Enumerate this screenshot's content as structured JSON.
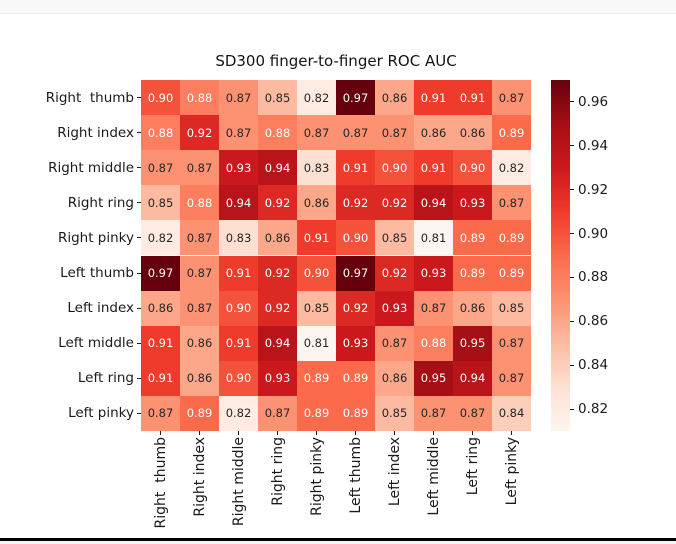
{
  "chart_data": {
    "type": "heatmap",
    "title": "SD300 finger-to-finger ROC AUC",
    "xlabel": "",
    "ylabel": "",
    "row_labels": [
      "Right  thumb",
      "Right index",
      "Right middle",
      "Right ring",
      "Right pinky",
      "Left thumb",
      "Left index",
      "Left middle",
      "Left ring",
      "Left pinky"
    ],
    "col_labels": [
      "Right  thumb",
      "Right index",
      "Right middle",
      "Right ring",
      "Right pinky",
      "Left thumb",
      "Left index",
      "Left middle",
      "Left ring",
      "Left pinky"
    ],
    "values": [
      [
        0.9,
        0.88,
        0.87,
        0.85,
        0.82,
        0.97,
        0.86,
        0.91,
        0.91,
        0.87
      ],
      [
        0.88,
        0.92,
        0.87,
        0.88,
        0.87,
        0.87,
        0.87,
        0.86,
        0.86,
        0.89
      ],
      [
        0.87,
        0.87,
        0.93,
        0.94,
        0.83,
        0.91,
        0.9,
        0.91,
        0.9,
        0.82
      ],
      [
        0.85,
        0.88,
        0.94,
        0.92,
        0.86,
        0.92,
        0.92,
        0.94,
        0.93,
        0.87
      ],
      [
        0.82,
        0.87,
        0.83,
        0.86,
        0.91,
        0.9,
        0.85,
        0.81,
        0.89,
        0.89
      ],
      [
        0.97,
        0.87,
        0.91,
        0.92,
        0.9,
        0.97,
        0.92,
        0.93,
        0.89,
        0.89
      ],
      [
        0.86,
        0.87,
        0.9,
        0.92,
        0.85,
        0.92,
        0.93,
        0.87,
        0.86,
        0.85
      ],
      [
        0.91,
        0.86,
        0.91,
        0.94,
        0.81,
        0.93,
        0.87,
        0.88,
        0.95,
        0.87
      ],
      [
        0.91,
        0.86,
        0.9,
        0.93,
        0.89,
        0.89,
        0.86,
        0.95,
        0.94,
        0.87
      ],
      [
        0.87,
        0.89,
        0.82,
        0.87,
        0.89,
        0.89,
        0.85,
        0.87,
        0.87,
        0.84
      ]
    ],
    "vmin": 0.81,
    "vmax": 0.97,
    "annotation_format": "0.2f",
    "annotated": true,
    "grid": false,
    "colormap": "Reds",
    "colormap_stops": [
      "#fff5f0",
      "#fee0d2",
      "#fcbba1",
      "#fc9272",
      "#fb6a4a",
      "#ef3b2c",
      "#cb181d",
      "#a50f15",
      "#67000d"
    ],
    "annotation_text_colors": {
      "light_text": "#ffffff",
      "dark_text": "#262626"
    },
    "colorbar": {
      "position": "right",
      "ticks": [
        0.96,
        0.94,
        0.92,
        0.9,
        0.88,
        0.86,
        0.84,
        0.82
      ],
      "tick_labels": [
        "0.96",
        "0.94",
        "0.92",
        "0.90",
        "0.88",
        "0.86",
        "0.84",
        "0.82"
      ]
    }
  },
  "colors": {
    "figure_background": "#ffffff",
    "axis_text": "#1a1a1a",
    "bottom_edge_line": "#000000"
  }
}
